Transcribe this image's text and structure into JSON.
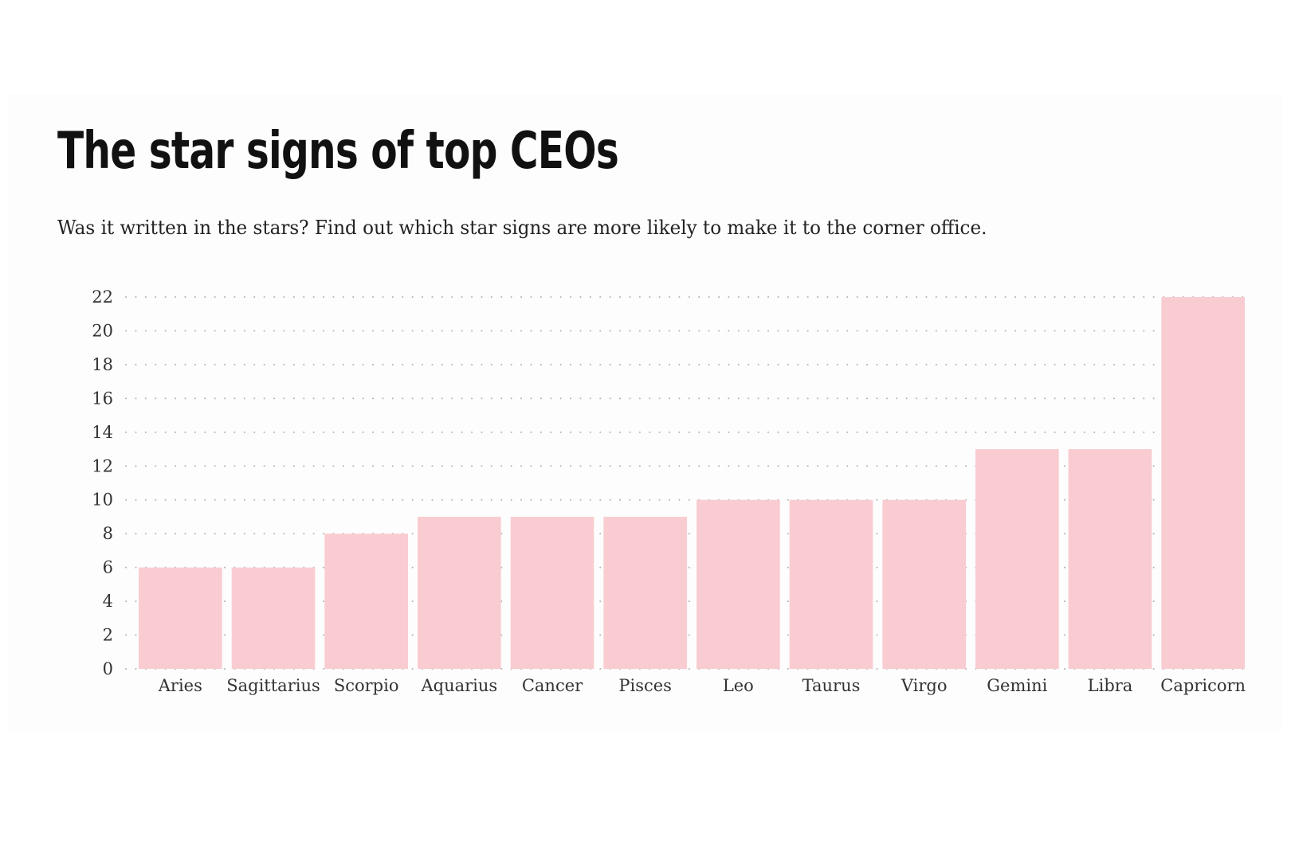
{
  "title": "The star signs of top CEOs",
  "subtitle": "Was it written in the stars? Find out which star signs are more likely to make it to the corner office.",
  "colors": {
    "bar": "#f9ccd1",
    "grid": "#b5b5b5",
    "text": "#333333"
  },
  "chart_data": {
    "type": "bar",
    "title": "The star signs of top CEOs",
    "subtitle": "Was it written in the stars? Find out which star signs are more likely to make it to the corner office.",
    "categories": [
      "Aries",
      "Sagittarius",
      "Scorpio",
      "Aquarius",
      "Cancer",
      "Pisces",
      "Leo",
      "Taurus",
      "Virgo",
      "Gemini",
      "Libra",
      "Capricorn"
    ],
    "values": [
      6,
      6,
      8,
      9,
      9,
      9,
      10,
      10,
      10,
      13,
      13,
      22
    ],
    "yticks": [
      0,
      2,
      4,
      6,
      8,
      10,
      12,
      14,
      16,
      18,
      20,
      22
    ],
    "ylim": [
      0,
      22
    ],
    "xlabel": "",
    "ylabel": "",
    "grid": "horizontal dotted",
    "legend": "none"
  }
}
